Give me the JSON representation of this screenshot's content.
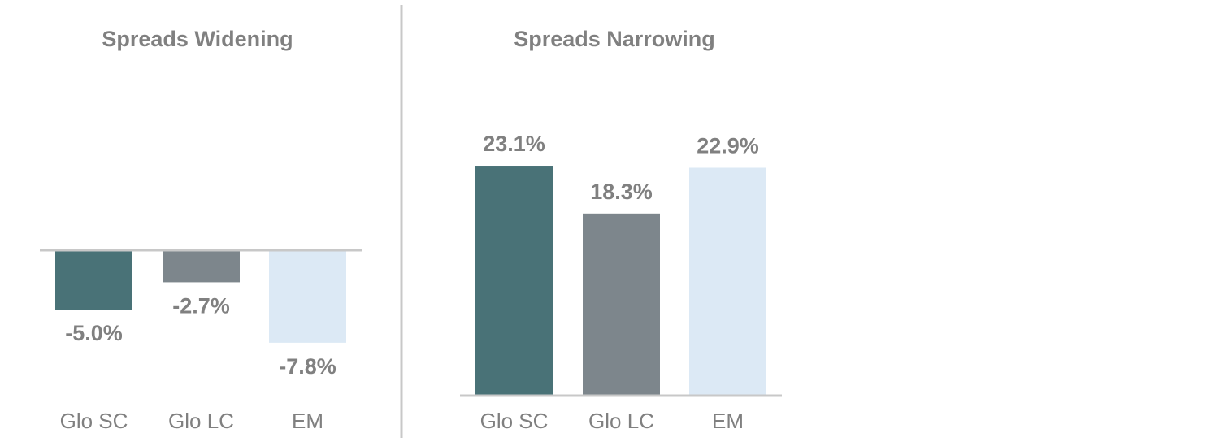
{
  "chart_data": [
    {
      "type": "bar",
      "title": "Spreads Widening",
      "categories": [
        "Glo SC",
        "Glo LC",
        "EM"
      ],
      "values": [
        -5.0,
        -2.7,
        -7.8
      ],
      "value_labels": [
        "-5.0%",
        "-2.7%",
        "-7.8%"
      ],
      "colors": [
        "#497277",
        "#7d868c",
        "#dce9f5"
      ],
      "xlabel": "",
      "ylabel": "",
      "ylim": [
        -12,
        0
      ],
      "grid": false
    },
    {
      "type": "bar",
      "title": "Spreads Narrowing",
      "categories": [
        "Glo SC",
        "Glo LC",
        "EM"
      ],
      "values": [
        23.1,
        18.3,
        22.9
      ],
      "value_labels": [
        "23.1%",
        "18.3%",
        "22.9%"
      ],
      "colors": [
        "#497277",
        "#7d868c",
        "#dce9f5"
      ],
      "xlabel": "",
      "ylabel": "",
      "ylim": [
        0,
        25
      ],
      "grid": false
    }
  ],
  "colors": {
    "baseline": "#c8c8c8",
    "divider": "#c8c8c8",
    "text": "#808080"
  }
}
